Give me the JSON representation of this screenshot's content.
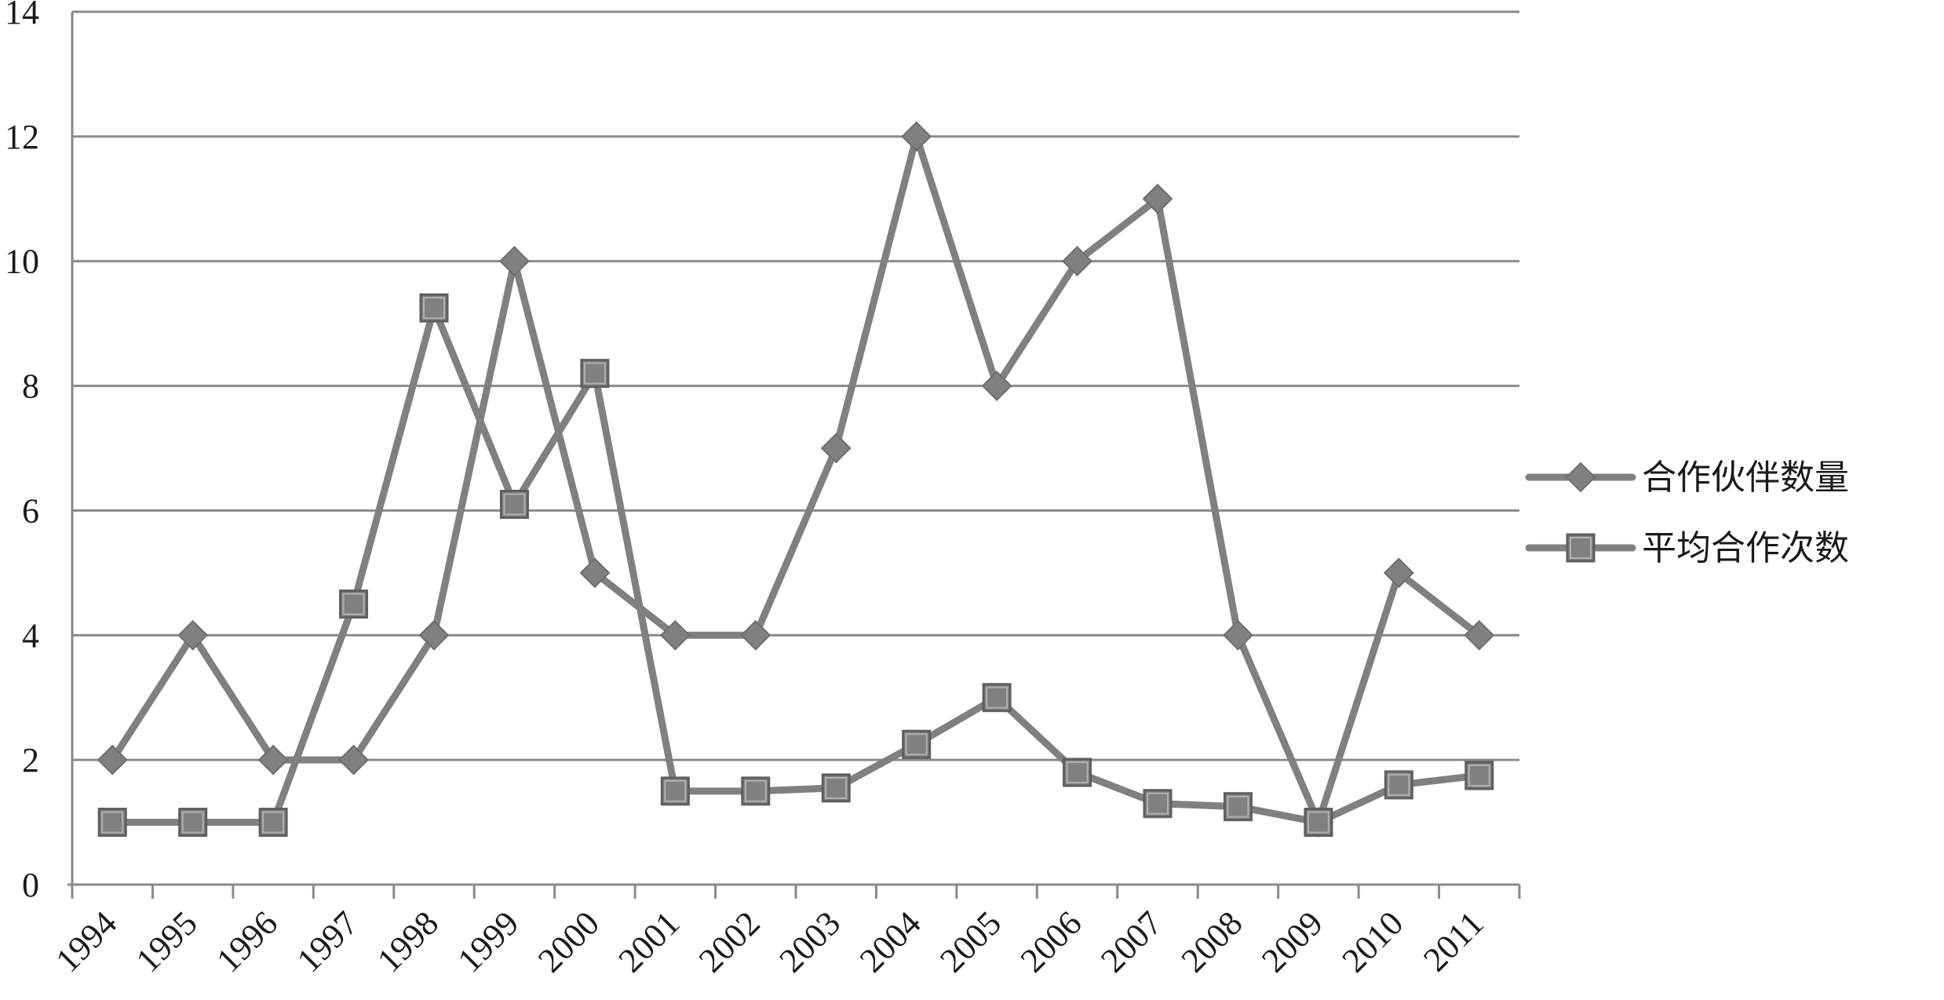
{
  "chart_data": {
    "type": "line",
    "title": "",
    "xlabel": "",
    "ylabel": "",
    "categories": [
      "1994",
      "1995",
      "1996",
      "1997",
      "1998",
      "1999",
      "2000",
      "2001",
      "2002",
      "2003",
      "2004",
      "2005",
      "2006",
      "2007",
      "2008",
      "2009",
      "2010",
      "2011"
    ],
    "ylim": [
      0,
      14
    ],
    "yticks": [
      "0",
      "2",
      "4",
      "6",
      "8",
      "10",
      "12",
      "14"
    ],
    "grid": true,
    "legend_position": "right",
    "series": [
      {
        "name": "合作伙伴数量",
        "marker": "diamond",
        "color": "#808080",
        "values": [
          2,
          4,
          2,
          2,
          4,
          10,
          5,
          4,
          4,
          7,
          12,
          8,
          10,
          11,
          4,
          1,
          5,
          4
        ]
      },
      {
        "name": "平均合作次数",
        "marker": "square",
        "color": "#808080",
        "values": [
          1,
          1,
          1,
          4.5,
          9.25,
          6.1,
          8.2,
          1.5,
          1.5,
          1.55,
          2.25,
          3,
          1.8,
          1.3,
          1.25,
          1,
          1.6,
          1.75
        ]
      }
    ]
  }
}
